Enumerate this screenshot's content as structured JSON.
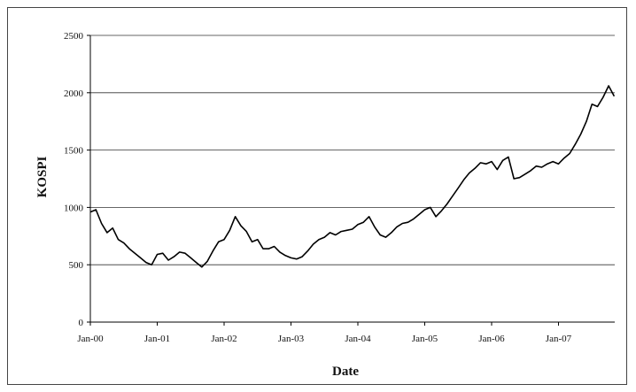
{
  "chart_data": {
    "type": "line",
    "title": "",
    "xlabel": "Date",
    "ylabel": "KOSPI",
    "ylim": [
      0,
      2500
    ],
    "y_ticks": [
      "0",
      "500",
      "1000",
      "1500",
      "2000",
      "2500"
    ],
    "x_ticks": [
      "Jan-00",
      "Jan-01",
      "Jan-02",
      "Jan-03",
      "Jan-04",
      "Jan-05",
      "Jan-06",
      "Jan-07"
    ],
    "grid": "horizontal",
    "series": [
      {
        "name": "",
        "color": "#000000",
        "x": [
          "2000-01",
          "2000-02",
          "2000-03",
          "2000-04",
          "2000-05",
          "2000-06",
          "2000-07",
          "2000-08",
          "2000-09",
          "2000-10",
          "2000-11",
          "2000-12",
          "2001-01",
          "2001-02",
          "2001-03",
          "2001-04",
          "2001-05",
          "2001-06",
          "2001-07",
          "2001-08",
          "2001-09",
          "2001-10",
          "2001-11",
          "2001-12",
          "2002-01",
          "2002-02",
          "2002-03",
          "2002-04",
          "2002-05",
          "2002-06",
          "2002-07",
          "2002-08",
          "2002-09",
          "2002-10",
          "2002-11",
          "2002-12",
          "2003-01",
          "2003-02",
          "2003-03",
          "2003-04",
          "2003-05",
          "2003-06",
          "2003-07",
          "2003-08",
          "2003-09",
          "2003-10",
          "2003-11",
          "2003-12",
          "2004-01",
          "2004-02",
          "2004-03",
          "2004-04",
          "2004-05",
          "2004-06",
          "2004-07",
          "2004-08",
          "2004-09",
          "2004-10",
          "2004-11",
          "2004-12",
          "2005-01",
          "2005-02",
          "2005-03",
          "2005-04",
          "2005-05",
          "2005-06",
          "2005-07",
          "2005-08",
          "2005-09",
          "2005-10",
          "2005-11",
          "2005-12",
          "2006-01",
          "2006-02",
          "2006-03",
          "2006-04",
          "2006-05",
          "2006-06",
          "2006-07",
          "2006-08",
          "2006-09",
          "2006-10",
          "2006-11",
          "2006-12",
          "2007-01",
          "2007-02",
          "2007-03",
          "2007-04",
          "2007-05",
          "2007-06",
          "2007-07",
          "2007-08",
          "2007-09",
          "2007-10",
          "2007-11"
        ],
        "y": [
          960,
          980,
          860,
          780,
          820,
          720,
          690,
          640,
          600,
          560,
          520,
          500,
          590,
          600,
          540,
          570,
          610,
          600,
          560,
          520,
          480,
          530,
          620,
          700,
          720,
          800,
          920,
          840,
          790,
          700,
          720,
          640,
          640,
          660,
          610,
          580,
          560,
          550,
          570,
          620,
          680,
          720,
          740,
          780,
          760,
          790,
          800,
          810,
          850,
          870,
          920,
          830,
          760,
          740,
          780,
          830,
          860,
          870,
          900,
          940,
          980,
          1000,
          920,
          970,
          1030,
          1100,
          1170,
          1240,
          1300,
          1340,
          1390,
          1380,
          1400,
          1330,
          1410,
          1440,
          1250,
          1260,
          1290,
          1320,
          1360,
          1350,
          1380,
          1400,
          1380,
          1430,
          1470,
          1550,
          1640,
          1750,
          1900,
          1880,
          1960,
          2060,
          1970
        ]
      }
    ]
  }
}
